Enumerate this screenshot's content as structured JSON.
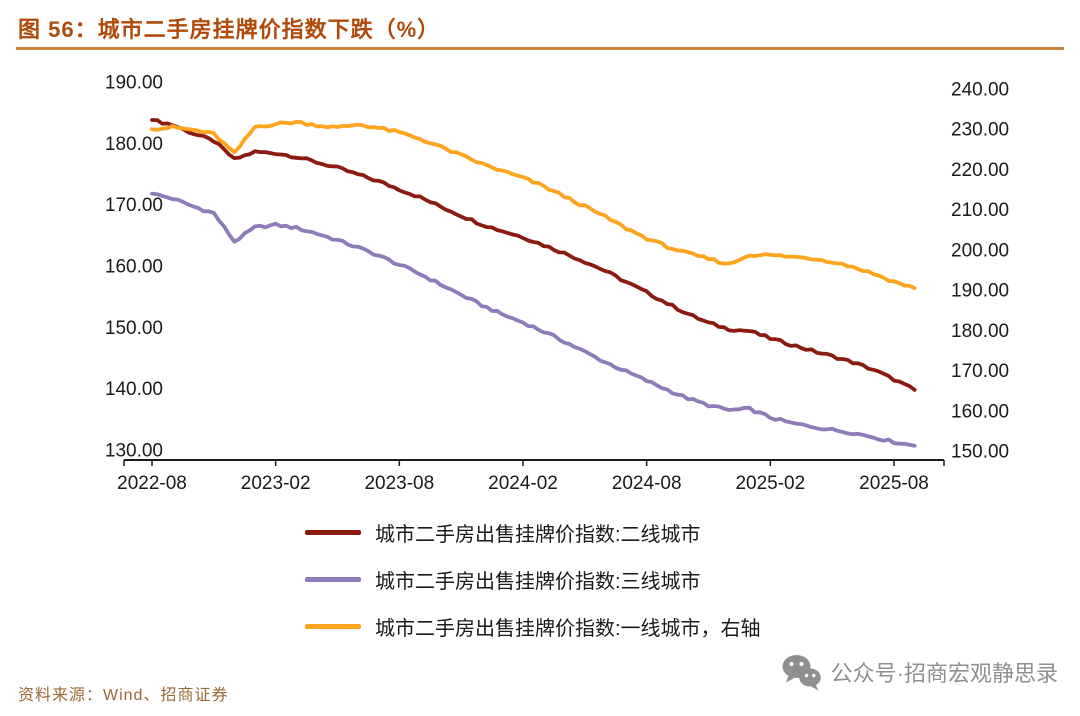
{
  "title": "图 56：城市二手房挂牌价指数下跌（%）",
  "source": "资料来源：Wind、招商证券",
  "watermark": {
    "text": "公众号·招商宏观静思录"
  },
  "colors": {
    "tier2": "#8B1B10",
    "tier3": "#8D7CB9",
    "tier1": "#FFA41F",
    "title": "#AF4A0A",
    "rule": "#C9853D",
    "source": "#9A6A35",
    "watermark": "#8F8F8F",
    "axis_text": "#1A1A1A"
  },
  "chart_data": {
    "type": "line",
    "title": "城市二手房挂牌价指数下跌（%）",
    "grid": false,
    "legend_position": "bottom",
    "x_tick_labels": [
      "2022-08",
      "2023-02",
      "2023-08",
      "2024-02",
      "2024-08",
      "2025-02",
      "2025-08"
    ],
    "left_axis": {
      "min": 130,
      "max": 190,
      "tick_labels": [
        "190.00",
        "180.00",
        "170.00",
        "160.00",
        "150.00",
        "140.00",
        "130.00"
      ]
    },
    "right_axis": {
      "min": 150,
      "max": 240,
      "tick_labels": [
        "240.00",
        "230.00",
        "220.00",
        "210.00",
        "200.00",
        "190.00",
        "180.00",
        "170.00",
        "160.00",
        "150.00"
      ]
    },
    "x_monthly": [
      "2022-08",
      "2022-09",
      "2022-10",
      "2022-11",
      "2022-12",
      "2023-01",
      "2023-02",
      "2023-03",
      "2023-04",
      "2023-05",
      "2023-06",
      "2023-07",
      "2023-08",
      "2023-09",
      "2023-10",
      "2023-11",
      "2023-12",
      "2024-01",
      "2024-02",
      "2024-03",
      "2024-04",
      "2024-05",
      "2024-06",
      "2024-07",
      "2024-08",
      "2024-09",
      "2024-10",
      "2024-11",
      "2024-12",
      "2025-01",
      "2025-02",
      "2025-03",
      "2025-04",
      "2025-05",
      "2025-06",
      "2025-07",
      "2025-08",
      "2025-09"
    ],
    "series": [
      {
        "name": "城市二手房出售挂牌价指数:二线城市",
        "axis": "left",
        "color_key": "tier2",
        "values": [
          183.8,
          183.0,
          181.6,
          180.4,
          177.4,
          178.6,
          178.4,
          177.8,
          176.9,
          176.0,
          174.9,
          173.8,
          172.5,
          171.2,
          169.7,
          168.2,
          166.8,
          165.7,
          164.7,
          163.4,
          162.1,
          160.7,
          159.2,
          157.4,
          155.7,
          153.9,
          152.2,
          150.7,
          149.7,
          149.4,
          148.2,
          147.2,
          146.2,
          145.3,
          144.3,
          143.1,
          141.5,
          139.8
        ]
      },
      {
        "name": "城市二手房出售挂牌价指数:三线城市",
        "axis": "left",
        "color_key": "tier3",
        "values": [
          171.8,
          171.0,
          169.7,
          168.6,
          164.0,
          166.3,
          166.7,
          166.2,
          165.3,
          164.2,
          163.0,
          161.7,
          160.2,
          158.7,
          157.0,
          155.3,
          153.6,
          152.1,
          150.8,
          149.3,
          147.7,
          146.0,
          144.3,
          142.8,
          141.3,
          139.8,
          138.4,
          137.3,
          136.5,
          136.7,
          135.3,
          134.4,
          133.8,
          133.3,
          132.8,
          132.1,
          131.3,
          130.7
        ]
      },
      {
        "name": "城市二手房出售挂牌价指数:一线城市，右轴",
        "axis": "right",
        "color_key": "tier1",
        "values": [
          230.0,
          230.5,
          229.8,
          228.8,
          224.0,
          230.6,
          231.3,
          231.8,
          231.0,
          230.4,
          231.2,
          230.3,
          229.2,
          227.6,
          225.6,
          223.5,
          221.4,
          219.6,
          217.9,
          215.8,
          213.3,
          210.8,
          208.2,
          205.4,
          202.9,
          200.8,
          199.1,
          197.8,
          196.4,
          198.8,
          198.7,
          198.3,
          197.9,
          197.1,
          195.8,
          194.1,
          192.1,
          190.5
        ]
      }
    ]
  }
}
